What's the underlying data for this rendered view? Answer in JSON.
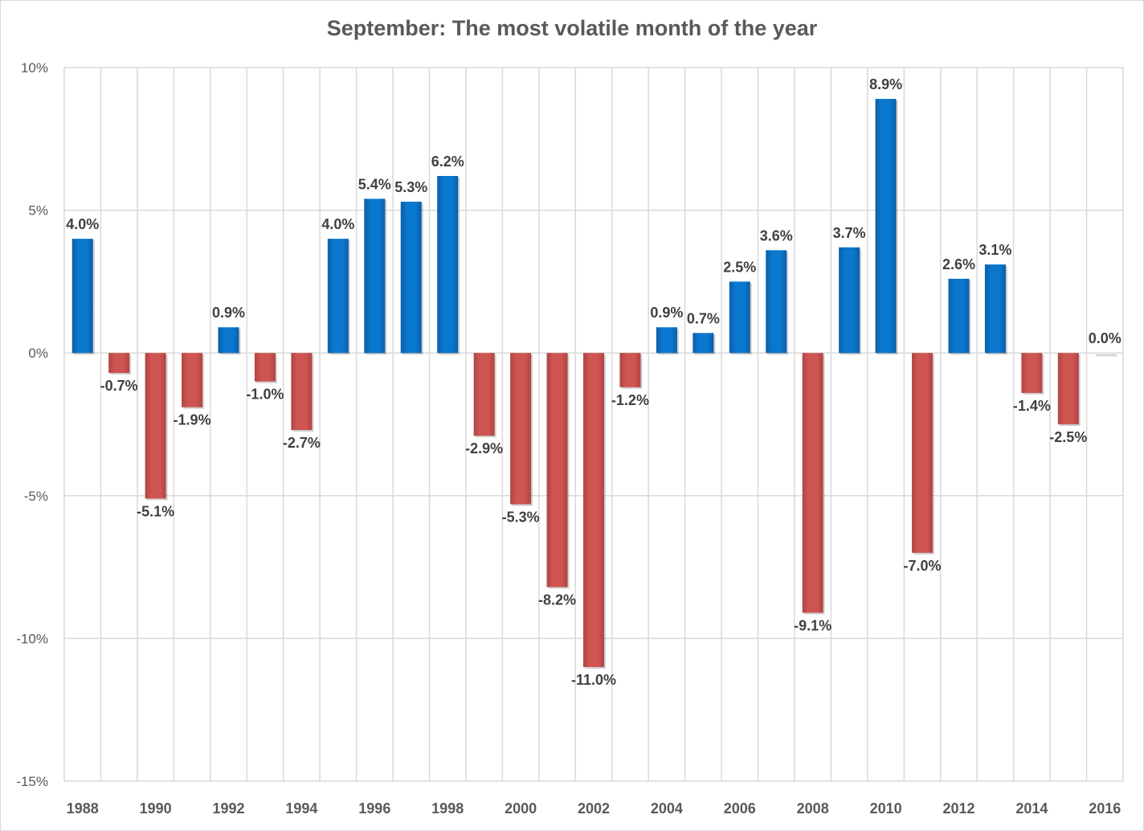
{
  "chart_data": {
    "type": "bar",
    "title": "September: The most volatile month of the year",
    "xlabel": "",
    "ylabel": "",
    "ylim": [
      -15,
      10
    ],
    "yticks": [
      10,
      5,
      0,
      -5,
      -10,
      -15
    ],
    "ytick_labels": [
      "10%",
      "5%",
      "0%",
      "-5%",
      "-10%",
      "-15%"
    ],
    "categories": [
      "1988",
      "1989",
      "1990",
      "1991",
      "1992",
      "1993",
      "1994",
      "1995",
      "1996",
      "1997",
      "1998",
      "1999",
      "2000",
      "2001",
      "2002",
      "2003",
      "2004",
      "2005",
      "2006",
      "2007",
      "2008",
      "2009",
      "2010",
      "2011",
      "2012",
      "2013",
      "2014",
      "2015",
      "2016"
    ],
    "xtick_labels_shown": [
      "1988",
      "1990",
      "1992",
      "1994",
      "1996",
      "1998",
      "2000",
      "2002",
      "2004",
      "2006",
      "2008",
      "2010",
      "2012",
      "2014",
      "2016"
    ],
    "values": [
      4.0,
      -0.7,
      -5.1,
      -1.9,
      0.9,
      -1.0,
      -2.7,
      4.0,
      5.4,
      5.3,
      6.2,
      -2.9,
      -5.3,
      -8.2,
      -11.0,
      -1.2,
      0.9,
      0.7,
      2.5,
      3.6,
      -9.1,
      3.7,
      8.9,
      -7.0,
      2.6,
      3.1,
      -1.4,
      -2.5,
      0.0
    ],
    "data_labels": [
      "4.0%",
      "-0.7%",
      "-5.1%",
      "-1.9%",
      "0.9%",
      "-1.0%",
      "-2.7%",
      "4.0%",
      "5.4%",
      "5.3%",
      "6.2%",
      "-2.9%",
      "-5.3%",
      "-8.2%",
      "-11.0%",
      "-1.2%",
      "0.9%",
      "0.7%",
      "2.5%",
      "3.6%",
      "-9.1%",
      "3.7%",
      "8.9%",
      "-7.0%",
      "2.6%",
      "3.1%",
      "-1.4%",
      "-2.5%",
      "0.0%"
    ],
    "grid": true,
    "legend": "none",
    "colors": {
      "positive": "#0070c0",
      "negative": "#c0504d",
      "grid": "#d9d9d9"
    }
  }
}
